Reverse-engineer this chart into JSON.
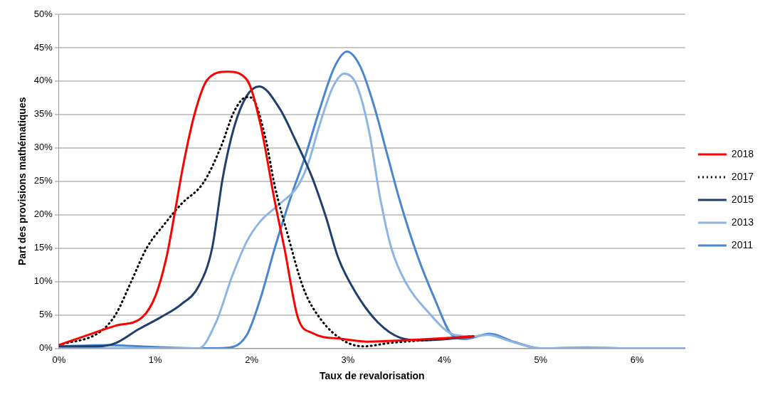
{
  "chart_data": {
    "type": "line",
    "xlabel": "Taux de revalorisation",
    "ylabel": "Part des provisions mathématiques",
    "xlim": [
      0,
      6.5
    ],
    "xticks": [
      {
        "value": 0,
        "label": "0%"
      },
      {
        "value": 1,
        "label": "1%"
      },
      {
        "value": 2,
        "label": "2%"
      },
      {
        "value": 3,
        "label": "3%"
      },
      {
        "value": 4,
        "label": "4%"
      },
      {
        "value": 5,
        "label": "5%"
      },
      {
        "value": 6,
        "label": "6%"
      }
    ],
    "ylim": [
      0,
      50
    ],
    "yticks": [
      {
        "value": 0,
        "label": "0%"
      },
      {
        "value": 5,
        "label": "5%"
      },
      {
        "value": 10,
        "label": "10%"
      },
      {
        "value": 15,
        "label": "15%"
      },
      {
        "value": 20,
        "label": "20%"
      },
      {
        "value": 25,
        "label": "25%"
      },
      {
        "value": 30,
        "label": "30%"
      },
      {
        "value": 35,
        "label": "35%"
      },
      {
        "value": 40,
        "label": "40%"
      },
      {
        "value": 45,
        "label": "45%"
      },
      {
        "value": 50,
        "label": "50%"
      }
    ],
    "grid": "y",
    "legend": "right",
    "marker": "none",
    "series": [
      {
        "name": "2018",
        "color": "#ff0000",
        "line_style": "solid",
        "x": [
          0,
          0.3,
          0.59,
          0.86,
          1.0,
          1.12,
          1.2,
          1.29,
          1.41,
          1.54,
          1.75,
          1.95,
          2.09,
          2.24,
          2.34,
          2.48,
          2.63,
          2.95,
          3.2,
          3.59,
          4.1,
          4.3
        ],
        "values": [
          0.5,
          2,
          3.4,
          4.6,
          7.8,
          13.9,
          20.1,
          27.4,
          35.2,
          40.2,
          41.4,
          40.2,
          33.6,
          22,
          15,
          4.6,
          2.3,
          1.4,
          1,
          1.2,
          1.6,
          1.8
        ]
      },
      {
        "name": "2017",
        "color": "#000000",
        "line_style": "dotted",
        "x": [
          0,
          0.43,
          0.59,
          0.75,
          0.91,
          1.09,
          1.27,
          1.5,
          1.68,
          1.82,
          1.95,
          2.0,
          2.14,
          2.24,
          2.38,
          2.54,
          2.72,
          2.95,
          3.16,
          3.43,
          3.77,
          4.1,
          4.3
        ],
        "values": [
          0.5,
          2.5,
          5.1,
          10,
          15,
          18.5,
          21.6,
          24.8,
          30.1,
          35.5,
          37.6,
          37.5,
          31.7,
          24.3,
          16.7,
          8.9,
          4.3,
          1.2,
          0.3,
          0.8,
          1.2,
          1.6,
          1.8
        ]
      },
      {
        "name": "2015",
        "color": "#1f3f6e",
        "line_style": "solid",
        "x": [
          0,
          0.4,
          0.59,
          0.82,
          1.05,
          1.27,
          1.45,
          1.59,
          1.7,
          1.82,
          1.95,
          2.08,
          2.29,
          2.45,
          2.63,
          2.77,
          2.9,
          3.09,
          3.31,
          3.54,
          3.77,
          4.1,
          4.3
        ],
        "values": [
          0.3,
          0.3,
          0.8,
          2.8,
          4.6,
          6.6,
          9.3,
          15,
          25.5,
          33.2,
          37.8,
          39.2,
          35.9,
          31.3,
          25.5,
          19.7,
          13.5,
          8.1,
          3.9,
          1.6,
          1.2,
          1.5,
          1.8
        ]
      },
      {
        "name": "2013",
        "color": "#8db4e2",
        "line_style": "solid",
        "x": [
          0,
          1.0,
          1.45,
          1.63,
          1.8,
          1.95,
          2.09,
          2.29,
          2.48,
          2.59,
          2.7,
          2.84,
          2.96,
          3.09,
          3.22,
          3.33,
          3.45,
          3.59,
          3.81,
          4.11,
          4.3,
          4.45,
          4.7,
          5.0,
          5.5,
          6.0,
          6.5
        ],
        "values": [
          0,
          0,
          0,
          3.9,
          10.9,
          16,
          19,
          21.6,
          24.3,
          27.8,
          33.2,
          39,
          41.1,
          39.4,
          32.4,
          22.8,
          15,
          10.1,
          5.8,
          2,
          1.8,
          2,
          1,
          0,
          0.1,
          0,
          0
        ]
      },
      {
        "name": "2011",
        "color": "#4a86d0",
        "line_style": "solid",
        "x": [
          0,
          0.5,
          1.0,
          1.5,
          1.75,
          1.95,
          2.09,
          2.24,
          2.41,
          2.56,
          2.7,
          2.86,
          2.99,
          3.13,
          3.27,
          3.4,
          3.54,
          3.72,
          3.9,
          4.08,
          4.22,
          4.47,
          4.72,
          5.0,
          5.47,
          5.9,
          6.5
        ],
        "values": [
          0.3,
          0.5,
          0.2,
          0,
          0.1,
          2,
          7.4,
          15,
          22.8,
          28.9,
          35.5,
          42.1,
          44.4,
          42.1,
          36.3,
          29.4,
          22,
          13.9,
          7.4,
          2,
          1.4,
          2.2,
          1,
          0,
          0.15,
          0,
          0
        ]
      }
    ]
  }
}
